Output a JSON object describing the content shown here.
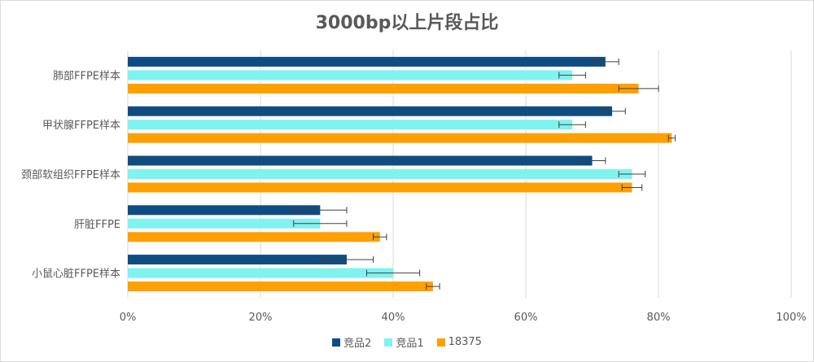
{
  "chart_data": {
    "type": "bar",
    "orientation": "horizontal",
    "title": "3000bp以上片段占比",
    "categories": [
      "肺部FFPE样本",
      "甲状腺FFPE样本",
      "颈部软组织FFPE样本",
      "肝脏FFPE",
      "小鼠心脏FFPE样本"
    ],
    "series": [
      {
        "name": "竞品2",
        "color": "#0f4c81",
        "values": [
          72,
          73,
          70,
          29,
          33
        ],
        "errors": [
          2,
          2,
          2,
          4,
          4
        ]
      },
      {
        "name": "竞品1",
        "color": "#7ff3ef",
        "values": [
          67,
          67,
          76,
          29,
          40
        ],
        "errors": [
          2,
          2,
          2,
          4,
          4
        ]
      },
      {
        "name": "18375",
        "color": "#ff9f00",
        "values": [
          77,
          82,
          76,
          38,
          46
        ],
        "errors": [
          3,
          0.5,
          1.5,
          1,
          1
        ]
      }
    ],
    "xlim": [
      0,
      100
    ],
    "xticks": [
      "0%",
      "20%",
      "40%",
      "60%",
      "80%",
      "100%"
    ],
    "grid": true,
    "legend_position": "bottom"
  }
}
